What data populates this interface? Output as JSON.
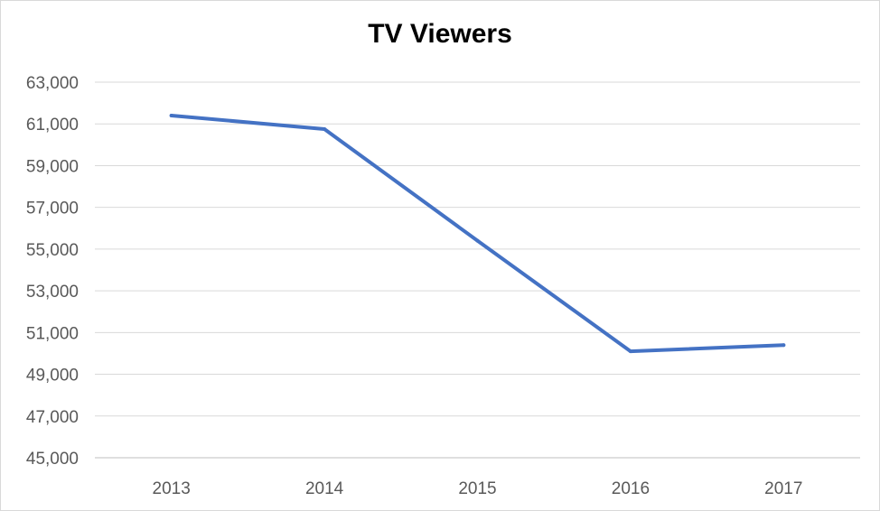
{
  "chart_data": {
    "type": "line",
    "title": "TV Viewers",
    "xlabel": "",
    "ylabel": "",
    "categories": [
      "2013",
      "2014",
      "2015",
      "2016",
      "2017"
    ],
    "series": [
      {
        "values": [
          61400,
          60750,
          55400,
          50100,
          50400
        ]
      }
    ],
    "ylim": [
      45000,
      63000
    ],
    "yticks": [
      45000,
      47000,
      49000,
      51000,
      53000,
      55000,
      57000,
      59000,
      61000,
      63000
    ],
    "ytick_labels": [
      "45,000",
      "47,000",
      "49,000",
      "51,000",
      "53,000",
      "55,000",
      "57,000",
      "59,000",
      "61,000",
      "63,000"
    ],
    "grid": "horizontal",
    "legend": "none",
    "colors": {
      "line": "#4472c4",
      "grid": "#d9d9d9",
      "axis": "#bfbfbf",
      "tick_text": "#595959"
    }
  }
}
